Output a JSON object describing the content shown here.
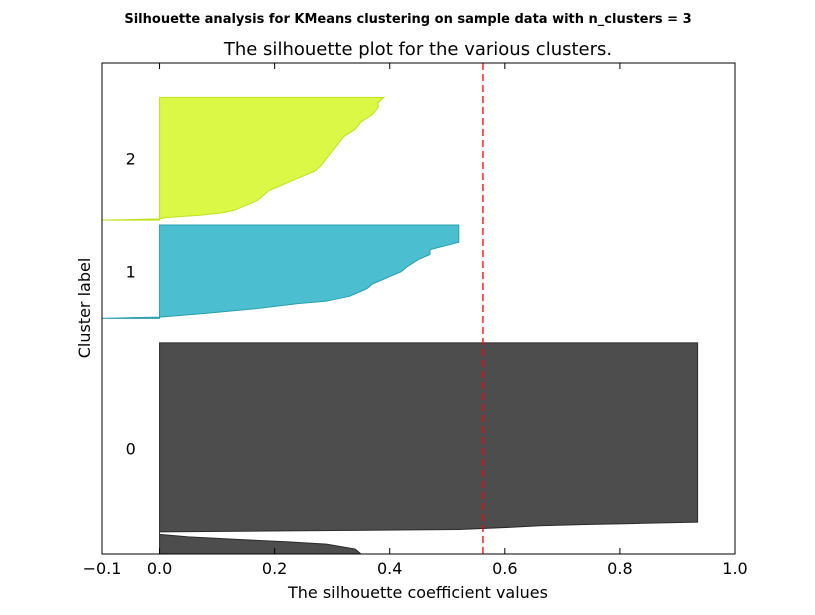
{
  "figure": {
    "suptitle": "Silhouette analysis for KMeans clustering on sample data with n_clusters = 3"
  },
  "chart_data": {
    "type": "area",
    "title": "The silhouette plot for the various clusters.",
    "xlabel": "The silhouette coefficient values",
    "ylabel": "Cluster label",
    "xlim": [
      -0.1,
      1.0
    ],
    "ylim": [
      0,
      200
    ],
    "xticks": [
      -0.1,
      0.0,
      0.2,
      0.4,
      0.6,
      0.8,
      1.0
    ],
    "xtick_labels": [
      "−0.1",
      "0.0",
      "0.2",
      "0.4",
      "0.6",
      "0.8",
      "1.0"
    ],
    "average_silhouette_score": 0.562,
    "average_line": {
      "color": "#ff0000",
      "style": "dashed"
    },
    "grid": false,
    "clusters": [
      {
        "label": "0",
        "color": "#4d4d4d",
        "edge_color": "#2a2a2a",
        "y_lower": 0,
        "y_upper": 86,
        "profile": [
          [
            0.0,
            0.35
          ],
          [
            2.0,
            0.34
          ],
          [
            4.0,
            0.29
          ],
          [
            5.0,
            0.22
          ],
          [
            6.0,
            0.13
          ],
          [
            7.0,
            0.05
          ],
          [
            8.0,
            0.0
          ],
          [
            9.0,
            0.0
          ],
          [
            10.0,
            0.52
          ],
          [
            11.0,
            0.62
          ],
          [
            11.5,
            0.66
          ],
          [
            12.0,
            0.74
          ],
          [
            12.5,
            0.84
          ],
          [
            13.0,
            0.935
          ],
          [
            86.0,
            0.935
          ]
        ]
      },
      {
        "label": "1",
        "color": "#4bbfcf",
        "edge_color": "#2a9fb0",
        "y_lower": 96,
        "y_upper": 134,
        "profile": [
          [
            0.0,
            -0.1
          ],
          [
            0.5,
            0.0
          ],
          [
            2.0,
            0.08
          ],
          [
            4.0,
            0.17
          ],
          [
            6.0,
            0.24
          ],
          [
            7.0,
            0.29
          ],
          [
            8.0,
            0.31
          ],
          [
            9.0,
            0.33
          ],
          [
            10.0,
            0.34
          ],
          [
            12.0,
            0.36
          ],
          [
            14.0,
            0.37
          ],
          [
            15.0,
            0.38
          ],
          [
            17.0,
            0.4
          ],
          [
            18.0,
            0.41
          ],
          [
            19.0,
            0.42
          ],
          [
            21.0,
            0.43
          ],
          [
            24.0,
            0.45
          ],
          [
            26.0,
            0.47
          ],
          [
            28.0,
            0.47
          ],
          [
            31.0,
            0.52
          ],
          [
            38.0,
            0.52
          ]
        ]
      },
      {
        "label": "2",
        "color": "#dbf847",
        "edge_color": "#c2e020",
        "y_lower": 136,
        "y_upper": 186,
        "profile": [
          [
            0.0,
            -0.1
          ],
          [
            0.5,
            0.0
          ],
          [
            1.0,
            0.01
          ],
          [
            2.0,
            0.07
          ],
          [
            3.0,
            0.11
          ],
          [
            4.0,
            0.13
          ],
          [
            5.0,
            0.14
          ],
          [
            6.0,
            0.15
          ],
          [
            8.0,
            0.17
          ],
          [
            10.0,
            0.18
          ],
          [
            12.0,
            0.19
          ],
          [
            14.0,
            0.21
          ],
          [
            16.0,
            0.23
          ],
          [
            18.0,
            0.25
          ],
          [
            20.0,
            0.27
          ],
          [
            22.0,
            0.28
          ],
          [
            25.0,
            0.29
          ],
          [
            28.0,
            0.3
          ],
          [
            31.0,
            0.31
          ],
          [
            34.0,
            0.32
          ],
          [
            37.0,
            0.34
          ],
          [
            40.0,
            0.35
          ],
          [
            43.0,
            0.37
          ],
          [
            46.0,
            0.38
          ],
          [
            48.0,
            0.38
          ],
          [
            50.0,
            0.39
          ]
        ]
      }
    ]
  }
}
